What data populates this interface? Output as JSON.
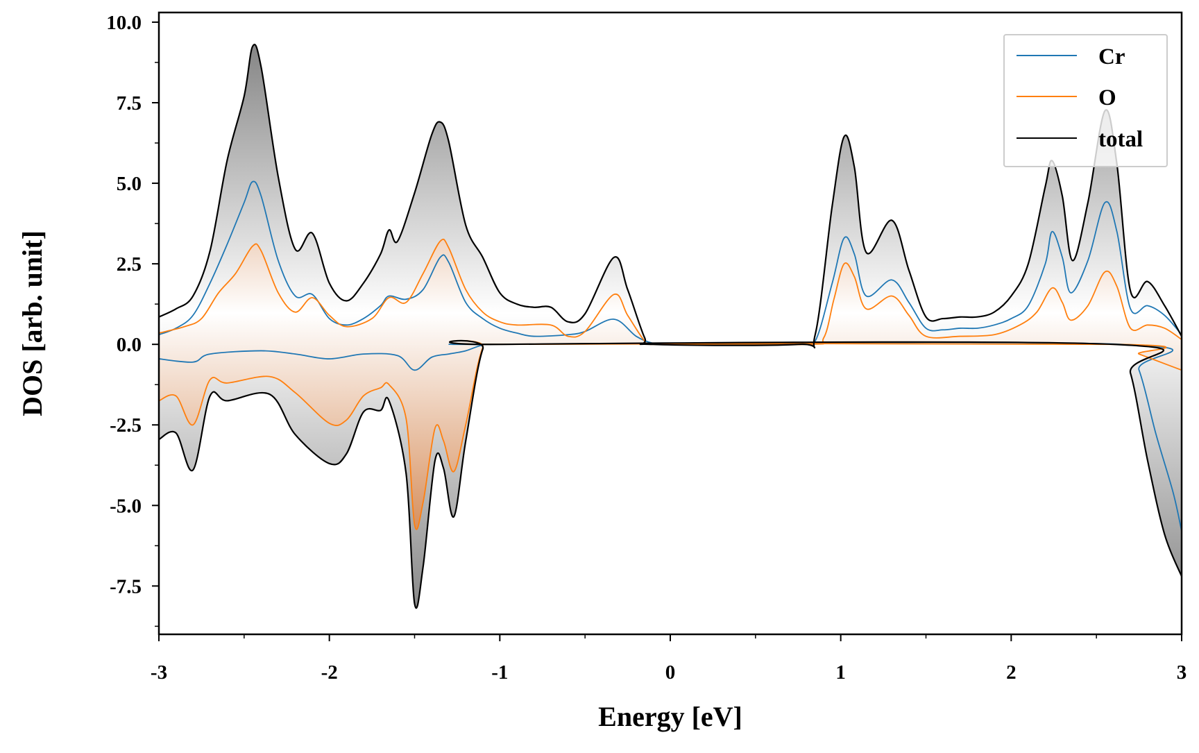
{
  "chart_data": {
    "type": "area",
    "title": "",
    "xlabel": "Energy [eV]",
    "ylabel": "DOS [arb. unit]",
    "xlim": [
      -3,
      3
    ],
    "ylim": [
      -9,
      10.3
    ],
    "xticks": [
      -3,
      -2,
      -1,
      0,
      1,
      2,
      3
    ],
    "xtick_labels": [
      "-3",
      "-2",
      "-1",
      "0",
      "1",
      "2",
      "3"
    ],
    "yticks": [
      -7.5,
      -5.0,
      -2.5,
      0.0,
      2.5,
      5.0,
      7.5,
      10.0
    ],
    "ytick_labels": [
      "-7.5",
      "-5.0",
      "-2.5",
      "0.0",
      "2.5",
      "5.0",
      "7.5",
      "10.0"
    ],
    "grid": false,
    "legend_position": "top-right",
    "fill_under_total": "gray gradient",
    "fill_under_O": "orange gradient",
    "series": [
      {
        "name": "Cr",
        "color": "#1f77b4",
        "spin_up": [
          [
            -3.0,
            0.3
          ],
          [
            -2.9,
            0.5
          ],
          [
            -2.8,
            0.9
          ],
          [
            -2.7,
            1.9
          ],
          [
            -2.6,
            3.1
          ],
          [
            -2.5,
            4.4
          ],
          [
            -2.45,
            5.05
          ],
          [
            -2.4,
            4.6
          ],
          [
            -2.3,
            2.6
          ],
          [
            -2.2,
            1.5
          ],
          [
            -2.1,
            1.55
          ],
          [
            -2.0,
            0.8
          ],
          [
            -1.9,
            0.6
          ],
          [
            -1.8,
            0.8
          ],
          [
            -1.7,
            1.2
          ],
          [
            -1.65,
            1.5
          ],
          [
            -1.55,
            1.4
          ],
          [
            -1.45,
            1.7
          ],
          [
            -1.35,
            2.7
          ],
          [
            -1.3,
            2.55
          ],
          [
            -1.2,
            1.3
          ],
          [
            -1.1,
            0.8
          ],
          [
            -1.0,
            0.5
          ],
          [
            -0.9,
            0.35
          ],
          [
            -0.8,
            0.25
          ],
          [
            -0.6,
            0.3
          ],
          [
            -0.5,
            0.4
          ],
          [
            -0.33,
            0.78
          ],
          [
            -0.2,
            0.25
          ],
          [
            -0.1,
            0.03
          ],
          [
            0.0,
            0.0
          ],
          [
            0.75,
            0.0
          ],
          [
            0.85,
            0.1
          ],
          [
            0.95,
            1.9
          ],
          [
            1.02,
            3.3
          ],
          [
            1.08,
            2.8
          ],
          [
            1.15,
            1.5
          ],
          [
            1.3,
            2.0
          ],
          [
            1.4,
            1.3
          ],
          [
            1.5,
            0.5
          ],
          [
            1.6,
            0.45
          ],
          [
            1.7,
            0.5
          ],
          [
            1.8,
            0.5
          ],
          [
            1.9,
            0.6
          ],
          [
            2.0,
            0.8
          ],
          [
            2.1,
            1.2
          ],
          [
            2.2,
            2.5
          ],
          [
            2.24,
            3.5
          ],
          [
            2.3,
            2.7
          ],
          [
            2.35,
            1.6
          ],
          [
            2.45,
            2.6
          ],
          [
            2.55,
            4.4
          ],
          [
            2.62,
            3.5
          ],
          [
            2.7,
            1.1
          ],
          [
            2.8,
            1.2
          ],
          [
            2.9,
            0.9
          ],
          [
            3.0,
            0.3
          ]
        ],
        "spin_down": [
          [
            -3.0,
            -0.45
          ],
          [
            -2.8,
            -0.55
          ],
          [
            -2.7,
            -0.3
          ],
          [
            -2.4,
            -0.2
          ],
          [
            -2.2,
            -0.3
          ],
          [
            -2.0,
            -0.45
          ],
          [
            -1.8,
            -0.3
          ],
          [
            -1.6,
            -0.35
          ],
          [
            -1.5,
            -0.8
          ],
          [
            -1.4,
            -0.4
          ],
          [
            -1.3,
            -0.3
          ],
          [
            -1.2,
            -0.2
          ],
          [
            -1.1,
            -0.02
          ],
          [
            -1.0,
            0.0
          ],
          [
            2.65,
            0.0
          ],
          [
            2.75,
            -0.8
          ],
          [
            2.85,
            -2.8
          ],
          [
            2.95,
            -4.6
          ],
          [
            3.0,
            -5.8
          ]
        ]
      },
      {
        "name": "O",
        "color": "#ff7f0e",
        "spin_up": [
          [
            -3.0,
            0.35
          ],
          [
            -2.85,
            0.55
          ],
          [
            -2.75,
            0.8
          ],
          [
            -2.65,
            1.6
          ],
          [
            -2.55,
            2.2
          ],
          [
            -2.45,
            3.05
          ],
          [
            -2.4,
            2.9
          ],
          [
            -2.3,
            1.6
          ],
          [
            -2.2,
            1.0
          ],
          [
            -2.1,
            1.45
          ],
          [
            -2.0,
            0.9
          ],
          [
            -1.9,
            0.55
          ],
          [
            -1.75,
            0.8
          ],
          [
            -1.65,
            1.45
          ],
          [
            -1.55,
            1.3
          ],
          [
            -1.45,
            2.2
          ],
          [
            -1.35,
            3.2
          ],
          [
            -1.3,
            3.0
          ],
          [
            -1.2,
            1.7
          ],
          [
            -1.1,
            1.0
          ],
          [
            -1.0,
            0.7
          ],
          [
            -0.9,
            0.6
          ],
          [
            -0.7,
            0.6
          ],
          [
            -0.6,
            0.25
          ],
          [
            -0.5,
            0.4
          ],
          [
            -0.33,
            1.55
          ],
          [
            -0.25,
            0.9
          ],
          [
            -0.15,
            0.1
          ],
          [
            -0.1,
            0.0
          ],
          [
            0.8,
            0.0
          ],
          [
            0.9,
            0.2
          ],
          [
            0.96,
            1.4
          ],
          [
            1.02,
            2.5
          ],
          [
            1.08,
            2.1
          ],
          [
            1.15,
            1.1
          ],
          [
            1.3,
            1.5
          ],
          [
            1.4,
            0.9
          ],
          [
            1.5,
            0.25
          ],
          [
            1.7,
            0.25
          ],
          [
            1.9,
            0.3
          ],
          [
            2.05,
            0.6
          ],
          [
            2.15,
            1.0
          ],
          [
            2.24,
            1.75
          ],
          [
            2.3,
            1.3
          ],
          [
            2.35,
            0.75
          ],
          [
            2.45,
            1.2
          ],
          [
            2.55,
            2.25
          ],
          [
            2.62,
            1.8
          ],
          [
            2.7,
            0.5
          ],
          [
            2.8,
            0.6
          ],
          [
            2.9,
            0.5
          ],
          [
            3.0,
            0.15
          ]
        ],
        "spin_down": [
          [
            -3.0,
            -1.75
          ],
          [
            -2.9,
            -1.6
          ],
          [
            -2.8,
            -2.5
          ],
          [
            -2.7,
            -1.1
          ],
          [
            -2.6,
            -1.2
          ],
          [
            -2.35,
            -1.0
          ],
          [
            -2.2,
            -1.5
          ],
          [
            -2.0,
            -2.45
          ],
          [
            -1.9,
            -2.35
          ],
          [
            -1.8,
            -1.6
          ],
          [
            -1.7,
            -1.35
          ],
          [
            -1.65,
            -1.25
          ],
          [
            -1.55,
            -2.3
          ],
          [
            -1.5,
            -5.6
          ],
          [
            -1.45,
            -4.9
          ],
          [
            -1.38,
            -2.6
          ],
          [
            -1.33,
            -3.0
          ],
          [
            -1.27,
            -3.95
          ],
          [
            -1.2,
            -2.5
          ],
          [
            -1.1,
            -0.1
          ],
          [
            -1.0,
            0.0
          ],
          [
            2.6,
            0.0
          ],
          [
            2.75,
            -0.3
          ],
          [
            2.9,
            -0.6
          ],
          [
            3.0,
            -0.8
          ]
        ]
      },
      {
        "name": "total",
        "color": "#000000",
        "spin_up": [
          [
            -3.0,
            0.85
          ],
          [
            -2.9,
            1.1
          ],
          [
            -2.8,
            1.5
          ],
          [
            -2.7,
            2.9
          ],
          [
            -2.6,
            5.7
          ],
          [
            -2.5,
            7.7
          ],
          [
            -2.45,
            9.25
          ],
          [
            -2.4,
            8.6
          ],
          [
            -2.3,
            5.2
          ],
          [
            -2.2,
            2.95
          ],
          [
            -2.1,
            3.45
          ],
          [
            -2.0,
            1.9
          ],
          [
            -1.9,
            1.35
          ],
          [
            -1.8,
            1.9
          ],
          [
            -1.7,
            2.8
          ],
          [
            -1.65,
            3.55
          ],
          [
            -1.6,
            3.2
          ],
          [
            -1.5,
            4.7
          ],
          [
            -1.4,
            6.5
          ],
          [
            -1.35,
            6.9
          ],
          [
            -1.3,
            6.3
          ],
          [
            -1.2,
            3.7
          ],
          [
            -1.1,
            2.7
          ],
          [
            -1.0,
            1.6
          ],
          [
            -0.9,
            1.25
          ],
          [
            -0.8,
            1.15
          ],
          [
            -0.7,
            1.15
          ],
          [
            -0.6,
            0.7
          ],
          [
            -0.5,
            0.95
          ],
          [
            -0.33,
            2.7
          ],
          [
            -0.25,
            1.7
          ],
          [
            -0.15,
            0.2
          ],
          [
            -0.1,
            0.0
          ],
          [
            0.75,
            0.0
          ],
          [
            0.85,
            0.3
          ],
          [
            0.95,
            4.3
          ],
          [
            1.02,
            6.45
          ],
          [
            1.08,
            5.5
          ],
          [
            1.15,
            2.85
          ],
          [
            1.3,
            3.85
          ],
          [
            1.4,
            2.3
          ],
          [
            1.5,
            0.85
          ],
          [
            1.6,
            0.8
          ],
          [
            1.7,
            0.85
          ],
          [
            1.8,
            0.85
          ],
          [
            1.9,
            1.0
          ],
          [
            2.0,
            1.5
          ],
          [
            2.1,
            2.5
          ],
          [
            2.2,
            4.9
          ],
          [
            2.24,
            5.7
          ],
          [
            2.3,
            4.6
          ],
          [
            2.36,
            2.6
          ],
          [
            2.45,
            4.4
          ],
          [
            2.55,
            7.25
          ],
          [
            2.62,
            5.6
          ],
          [
            2.7,
            1.65
          ],
          [
            2.8,
            1.95
          ],
          [
            2.9,
            1.2
          ],
          [
            3.0,
            0.25
          ]
        ],
        "spin_down": [
          [
            -3.0,
            -2.95
          ],
          [
            -2.9,
            -2.75
          ],
          [
            -2.8,
            -3.9
          ],
          [
            -2.7,
            -1.6
          ],
          [
            -2.6,
            -1.75
          ],
          [
            -2.35,
            -1.55
          ],
          [
            -2.2,
            -2.8
          ],
          [
            -2.0,
            -3.7
          ],
          [
            -1.9,
            -3.4
          ],
          [
            -1.8,
            -2.1
          ],
          [
            -1.7,
            -2.05
          ],
          [
            -1.65,
            -1.75
          ],
          [
            -1.55,
            -4.0
          ],
          [
            -1.5,
            -8.05
          ],
          [
            -1.45,
            -6.9
          ],
          [
            -1.38,
            -3.6
          ],
          [
            -1.33,
            -3.85
          ],
          [
            -1.27,
            -5.35
          ],
          [
            -1.2,
            -3.0
          ],
          [
            -1.1,
            -0.15
          ],
          [
            -1.0,
            0.0
          ],
          [
            2.6,
            0.0
          ],
          [
            2.7,
            -0.9
          ],
          [
            2.8,
            -3.6
          ],
          [
            2.9,
            -5.9
          ],
          [
            3.0,
            -7.2
          ]
        ]
      }
    ]
  }
}
